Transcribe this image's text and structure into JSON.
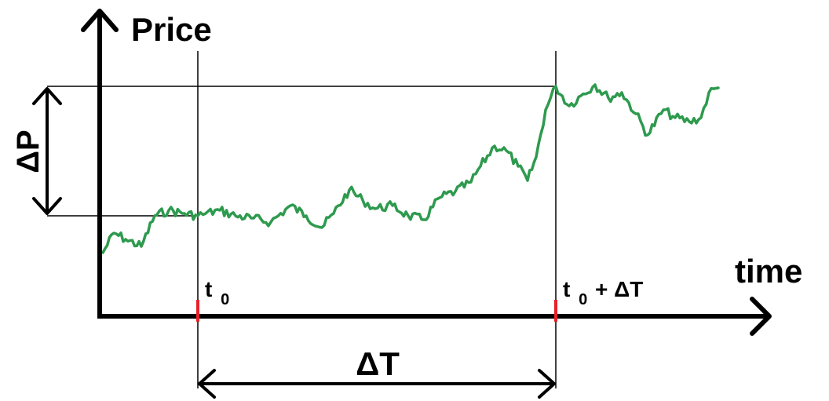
{
  "labels": {
    "y_axis": "Price",
    "x_axis": "time",
    "delta_p": "ΔP",
    "delta_t": "ΔT",
    "t0_main": "t",
    "t0_sub": "0",
    "t1_main": "t",
    "t1_sub": "0",
    "t1_suffix": "+ ΔT"
  },
  "colors": {
    "price_line": "#2e9a4e",
    "axis": "#000000",
    "tick_marker": "#e8202a",
    "guide": "#000000"
  }
}
